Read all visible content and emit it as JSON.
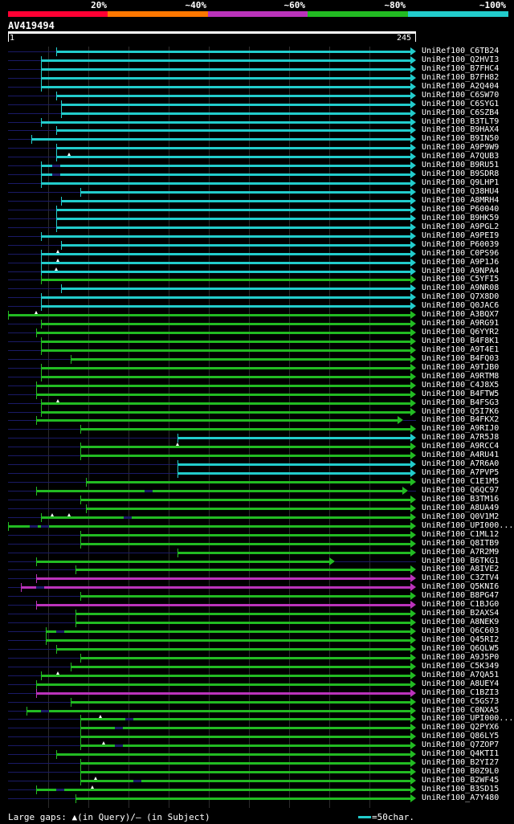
{
  "colors": {
    "red": "#ff0033",
    "orange": "#ff7700",
    "purple": "#bb33bb",
    "green": "#22bb22",
    "cyan": "#22cccc",
    "dark_dash": "#1a1a66"
  },
  "scale": {
    "labels": [
      "20%",
      "~40%",
      "~60%",
      "~80%",
      "~100%"
    ],
    "segment_colors": [
      "red",
      "orange",
      "purple",
      "green",
      "cyan"
    ]
  },
  "query": {
    "title": "AV419494",
    "length": 245,
    "ruler_start": "1",
    "ruler_end": "245"
  },
  "hits": [
    {
      "label": "UniRef100_C6TB24",
      "start": 30,
      "end": 245,
      "color": "cyan",
      "gq": [],
      "gs": []
    },
    {
      "label": "UniRef100_Q2HVI3",
      "start": 21,
      "end": 245,
      "color": "cyan",
      "gq": [],
      "gs": []
    },
    {
      "label": "UniRef100_B7FHC4",
      "start": 21,
      "end": 245,
      "color": "cyan",
      "gq": [],
      "gs": []
    },
    {
      "label": "UniRef100_B7FH82",
      "start": 21,
      "end": 245,
      "color": "cyan",
      "gq": [],
      "gs": []
    },
    {
      "label": "UniRef100_A2Q404",
      "start": 21,
      "end": 245,
      "color": "cyan",
      "gq": [],
      "gs": []
    },
    {
      "label": "UniRef100_C6SW70",
      "start": 30,
      "end": 245,
      "color": "cyan",
      "gq": [],
      "gs": []
    },
    {
      "label": "UniRef100_C6SYG1",
      "start": 33,
      "end": 245,
      "color": "cyan",
      "gq": [],
      "gs": []
    },
    {
      "label": "UniRef100_C6SZB4",
      "start": 33,
      "end": 245,
      "color": "cyan",
      "gq": [],
      "gs": []
    },
    {
      "label": "UniRef100_B3TLT9",
      "start": 21,
      "end": 245,
      "color": "cyan",
      "gq": [],
      "gs": []
    },
    {
      "label": "UniRef100_B9HAX4",
      "start": 30,
      "end": 245,
      "color": "cyan",
      "gq": [],
      "gs": []
    },
    {
      "label": "UniRef100_B9IN50",
      "start": 15,
      "end": 245,
      "color": "cyan",
      "gq": [],
      "gs": []
    },
    {
      "label": "UniRef100_A9P9W9",
      "start": 30,
      "end": 245,
      "color": "cyan",
      "gq": [],
      "gs": []
    },
    {
      "label": "UniRef100_A7QUB3",
      "start": 30,
      "end": 245,
      "color": "cyan",
      "gq": [
        38
      ],
      "gs": []
    },
    {
      "label": "UniRef100_B9RU51",
      "start": 21,
      "end": 245,
      "color": "cyan",
      "gq": [],
      "gs": [
        28
      ]
    },
    {
      "label": "UniRef100_B9SDR8",
      "start": 21,
      "end": 245,
      "color": "cyan",
      "gq": [],
      "gs": [
        28
      ]
    },
    {
      "label": "UniRef100_Q9LHP1",
      "start": 21,
      "end": 245,
      "color": "cyan",
      "gq": [],
      "gs": []
    },
    {
      "label": "UniRef100_Q38HU4",
      "start": 45,
      "end": 245,
      "color": "cyan",
      "gq": [],
      "gs": []
    },
    {
      "label": "UniRef100_A8MRH4",
      "start": 33,
      "end": 245,
      "color": "cyan",
      "gq": [],
      "gs": []
    },
    {
      "label": "UniRef100_P60040",
      "start": 30,
      "end": 245,
      "color": "cyan",
      "gq": [],
      "gs": []
    },
    {
      "label": "UniRef100_B9HK59",
      "start": 30,
      "end": 245,
      "color": "cyan",
      "gq": [],
      "gs": []
    },
    {
      "label": "UniRef100_A9PGL2",
      "start": 30,
      "end": 245,
      "color": "cyan",
      "gq": [],
      "gs": []
    },
    {
      "label": "UniRef100_A9PEI9",
      "start": 21,
      "end": 245,
      "color": "cyan",
      "gq": [],
      "gs": []
    },
    {
      "label": "UniRef100_P60039",
      "start": 33,
      "end": 245,
      "color": "cyan",
      "gq": [],
      "gs": []
    },
    {
      "label": "UniRef100_C0PS96",
      "start": 21,
      "end": 245,
      "color": "cyan",
      "gq": [
        31
      ],
      "gs": []
    },
    {
      "label": "UniRef100_A9P1J6",
      "start": 21,
      "end": 245,
      "color": "cyan",
      "gq": [
        31
      ],
      "gs": []
    },
    {
      "label": "UniRef100_A9NPA4",
      "start": 21,
      "end": 245,
      "color": "cyan",
      "gq": [
        30
      ],
      "gs": []
    },
    {
      "label": "UniRef100_C5YFI5",
      "start": 21,
      "end": 245,
      "color": "green",
      "gq": [],
      "gs": []
    },
    {
      "label": "UniRef100_A9NR08",
      "start": 33,
      "end": 245,
      "color": "cyan",
      "gq": [],
      "gs": []
    },
    {
      "label": "UniRef100_Q7X8D0",
      "start": 21,
      "end": 245,
      "color": "cyan",
      "gq": [],
      "gs": []
    },
    {
      "label": "UniRef100_Q0JAC6",
      "start": 21,
      "end": 245,
      "color": "cyan",
      "gq": [],
      "gs": []
    },
    {
      "label": "UniRef100_A3BQX7",
      "start": 1,
      "end": 245,
      "color": "green",
      "gq": [
        18
      ],
      "gs": []
    },
    {
      "label": "UniRef100_A9RG91",
      "start": 21,
      "end": 245,
      "color": "green",
      "gq": [],
      "gs": []
    },
    {
      "label": "UniRef100_Q6YYR2",
      "start": 18,
      "end": 245,
      "color": "green",
      "gq": [],
      "gs": []
    },
    {
      "label": "UniRef100_B4F8K1",
      "start": 21,
      "end": 245,
      "color": "green",
      "gq": [],
      "gs": []
    },
    {
      "label": "UniRef100_A9T4E1",
      "start": 21,
      "end": 245,
      "color": "green",
      "gq": [],
      "gs": []
    },
    {
      "label": "UniRef100_B4FQ03",
      "start": 39,
      "end": 245,
      "color": "green",
      "gq": [],
      "gs": []
    },
    {
      "label": "UniRef100_A9TJB0",
      "start": 21,
      "end": 245,
      "color": "green",
      "gq": [],
      "gs": []
    },
    {
      "label": "UniRef100_A9RTM8",
      "start": 21,
      "end": 245,
      "color": "green",
      "gq": [],
      "gs": []
    },
    {
      "label": "UniRef100_C4J8X5",
      "start": 18,
      "end": 245,
      "color": "green",
      "gq": [],
      "gs": []
    },
    {
      "label": "UniRef100_B4FTW5",
      "start": 18,
      "end": 245,
      "color": "green",
      "gq": [],
      "gs": []
    },
    {
      "label": "UniRef100_B4FSG3",
      "start": 21,
      "end": 245,
      "color": "green",
      "gq": [
        31
      ],
      "gs": []
    },
    {
      "label": "UniRef100_Q5I7K6",
      "start": 21,
      "end": 245,
      "color": "green",
      "gq": [],
      "gs": []
    },
    {
      "label": "UniRef100_B4FKX2",
      "start": 18,
      "end": 237,
      "color": "green",
      "gq": [],
      "gs": []
    },
    {
      "label": "UniRef100_A9RIJ0",
      "start": 45,
      "end": 245,
      "color": "green",
      "gq": [],
      "gs": []
    },
    {
      "label": "UniRef100_A7R5J8",
      "start": 104,
      "end": 245,
      "color": "cyan",
      "gq": [],
      "gs": []
    },
    {
      "label": "UniRef100_A9RCC4",
      "start": 45,
      "end": 245,
      "color": "green",
      "gq": [
        104
      ],
      "gs": []
    },
    {
      "label": "UniRef100_A4RU41",
      "start": 45,
      "end": 245,
      "color": "green",
      "gq": [],
      "gs": []
    },
    {
      "label": "UniRef100_A7R6A0",
      "start": 104,
      "end": 245,
      "color": "cyan",
      "gq": [],
      "gs": []
    },
    {
      "label": "UniRef100_A7PVP5",
      "start": 104,
      "end": 245,
      "color": "cyan",
      "gq": [],
      "gs": []
    },
    {
      "label": "UniRef100_C1E1M5",
      "start": 48,
      "end": 245,
      "color": "green",
      "gq": [],
      "gs": []
    },
    {
      "label": "UniRef100_Q6QC97",
      "start": 18,
      "end": 240,
      "color": "green",
      "gq": [],
      "gs": [
        84
      ]
    },
    {
      "label": "UniRef100_B3TM16",
      "start": 45,
      "end": 245,
      "color": "green",
      "gq": [],
      "gs": []
    },
    {
      "label": "UniRef100_A8UA49",
      "start": 48,
      "end": 245,
      "color": "green",
      "gq": [],
      "gs": []
    },
    {
      "label": "UniRef100_Q0V1M2",
      "start": 21,
      "end": 245,
      "color": "green",
      "gq": [
        28,
        38
      ],
      "gs": [
        71
      ]
    },
    {
      "label": "UniRef100_UPI000...",
      "start": 1,
      "end": 245,
      "color": "green",
      "gq": [],
      "gs": [
        14,
        21
      ]
    },
    {
      "label": "UniRef100_C1ML12",
      "start": 45,
      "end": 245,
      "color": "green",
      "gq": [],
      "gs": []
    },
    {
      "label": "UniRef100_Q8ITB9",
      "start": 45,
      "end": 245,
      "color": "green",
      "gq": [],
      "gs": []
    },
    {
      "label": "UniRef100_A7R2M9",
      "start": 104,
      "end": 245,
      "color": "green",
      "gq": [],
      "gs": []
    },
    {
      "label": "UniRef100_B6TKG1",
      "start": 18,
      "end": 196,
      "color": "green",
      "gq": [],
      "gs": []
    },
    {
      "label": "UniRef100_A8IVE2",
      "start": 42,
      "end": 245,
      "color": "green",
      "gq": [],
      "gs": []
    },
    {
      "label": "UniRef100_C3ZTV4",
      "start": 18,
      "end": 245,
      "color": "purple",
      "gq": [],
      "gs": []
    },
    {
      "label": "UniRef100_Q5KNI6",
      "start": 9,
      "end": 245,
      "color": "purple",
      "gq": [],
      "gs": [
        18
      ]
    },
    {
      "label": "UniRef100_B8PG47",
      "start": 45,
      "end": 245,
      "color": "green",
      "gq": [],
      "gs": []
    },
    {
      "label": "UniRef100_C1BJG0",
      "start": 18,
      "end": 245,
      "color": "purple",
      "gq": [],
      "gs": []
    },
    {
      "label": "UniRef100_B2AXS4",
      "start": 42,
      "end": 245,
      "color": "green",
      "gq": [],
      "gs": []
    },
    {
      "label": "UniRef100_A8NEK9",
      "start": 42,
      "end": 245,
      "color": "green",
      "gq": [],
      "gs": []
    },
    {
      "label": "UniRef100_Q6C603",
      "start": 24,
      "end": 245,
      "color": "green",
      "gq": [],
      "gs": [
        30
      ]
    },
    {
      "label": "UniRef100_Q45RI2",
      "start": 24,
      "end": 245,
      "color": "green",
      "gq": [],
      "gs": []
    },
    {
      "label": "UniRef100_Q6QLW5",
      "start": 30,
      "end": 245,
      "color": "green",
      "gq": [],
      "gs": []
    },
    {
      "label": "UniRef100_A9J5P0",
      "start": 45,
      "end": 245,
      "color": "green",
      "gq": [],
      "gs": []
    },
    {
      "label": "UniRef100_C5K349",
      "start": 39,
      "end": 245,
      "color": "green",
      "gq": [],
      "gs": []
    },
    {
      "label": "UniRef100_A7QA51",
      "start": 21,
      "end": 245,
      "color": "green",
      "gq": [
        31
      ],
      "gs": []
    },
    {
      "label": "UniRef100_A8UEY4",
      "start": 18,
      "end": 245,
      "color": "green",
      "gq": [],
      "gs": []
    },
    {
      "label": "UniRef100_C1BZI3",
      "start": 18,
      "end": 245,
      "color": "purple",
      "gq": [],
      "gs": []
    },
    {
      "label": "UniRef100_C5GS73",
      "start": 39,
      "end": 245,
      "color": "green",
      "gq": [],
      "gs": []
    },
    {
      "label": "UniRef100_C0NXA5",
      "start": 12,
      "end": 245,
      "color": "green",
      "gq": [],
      "gs": [
        21
      ]
    },
    {
      "label": "UniRef100_UPI000...",
      "start": 45,
      "end": 245,
      "color": "green",
      "gq": [
        57
      ],
      "gs": [
        72
      ]
    },
    {
      "label": "UniRef100_Q2PYX6",
      "start": 45,
      "end": 245,
      "color": "green",
      "gq": [],
      "gs": [
        66
      ]
    },
    {
      "label": "UniRef100_Q86LY5",
      "start": 45,
      "end": 245,
      "color": "green",
      "gq": [],
      "gs": []
    },
    {
      "label": "UniRef100_Q7ZOP7",
      "start": 45,
      "end": 245,
      "color": "green",
      "gq": [
        59
      ],
      "gs": [
        66
      ]
    },
    {
      "label": "UniRef100_Q4KTI1",
      "start": 30,
      "end": 245,
      "color": "green",
      "gq": [],
      "gs": []
    },
    {
      "label": "UniRef100_B2YI27",
      "start": 45,
      "end": 245,
      "color": "green",
      "gq": [],
      "gs": []
    },
    {
      "label": "UniRef100_B0Z9L0",
      "start": 45,
      "end": 245,
      "color": "green",
      "gq": [],
      "gs": []
    },
    {
      "label": "UniRef100_B2WF45",
      "start": 45,
      "end": 245,
      "color": "green",
      "gq": [
        54
      ],
      "gs": [
        77
      ]
    },
    {
      "label": "UniRef100_B3SD15",
      "start": 18,
      "end": 245,
      "color": "green",
      "gq": [
        52
      ],
      "gs": [
        30
      ]
    },
    {
      "label": "UniRef100_A7Y480",
      "start": 42,
      "end": 245,
      "color": "green",
      "gq": [],
      "gs": []
    }
  ],
  "footer": {
    "gaps_text": "Large gaps: ▲(in Query)/– (in Subject)",
    "legend_text": "=50char."
  }
}
